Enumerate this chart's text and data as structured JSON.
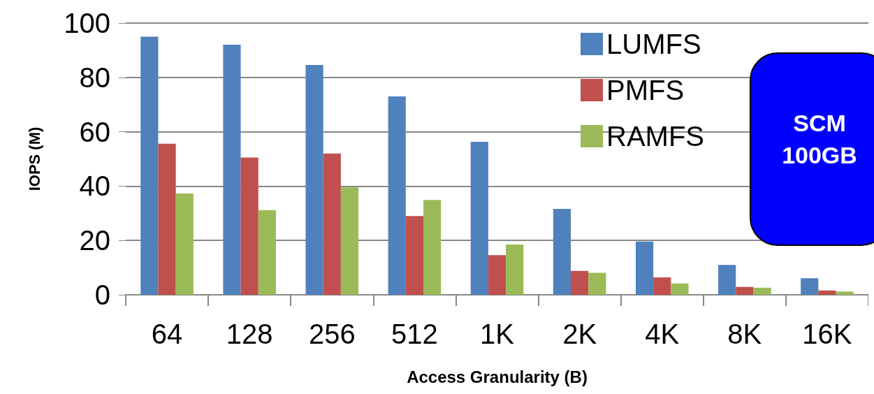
{
  "chart_data": {
    "type": "bar",
    "xlabel": "Access Granularity (B)",
    "ylabel": "IOPS (M)",
    "categories": [
      "64",
      "128",
      "256",
      "512",
      "1K",
      "2K",
      "4K",
      "8K",
      "16K"
    ],
    "series": [
      {
        "name": "LUMFS",
        "color": "#4f81bd",
        "values": [
          95,
          92,
          84.6,
          73,
          56.3,
          31.6,
          19.6,
          11,
          6.1
        ]
      },
      {
        "name": "PMFS",
        "color": "#c0504d",
        "values": [
          55.6,
          50.5,
          52,
          29,
          14.6,
          8.8,
          6.4,
          2.9,
          1.6
        ]
      },
      {
        "name": "RAMFS",
        "color": "#9bbb59",
        "values": [
          37.3,
          31.2,
          39.5,
          34.9,
          18.5,
          8.1,
          4.2,
          2.6,
          1.2
        ]
      }
    ],
    "ylim": [
      0,
      100
    ],
    "yticks": [
      0,
      20,
      40,
      60,
      80,
      100
    ],
    "grid": "y",
    "legend": "top right",
    "annotations": [
      "SCM",
      "100GB"
    ]
  }
}
